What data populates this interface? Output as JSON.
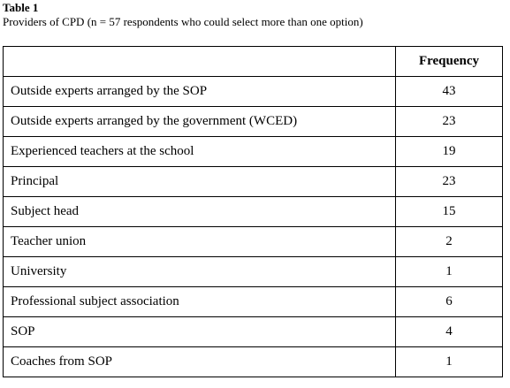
{
  "title": "Table 1",
  "caption": "Providers of CPD (n = 57 respondents who could select more than one option)",
  "table": {
    "header": "Frequency",
    "rows": [
      [
        "Outside experts arranged by the SOP",
        43
      ],
      [
        "Outside experts arranged by the government (WCED)",
        23
      ],
      [
        "Experienced teachers at the school",
        19
      ],
      [
        "Principal",
        23
      ],
      [
        "Subject head",
        15
      ],
      [
        "Teacher union",
        2
      ],
      [
        "University",
        1
      ],
      [
        "Professional subject association",
        6
      ],
      [
        "SOP",
        4
      ],
      [
        "Coaches from SOP",
        1
      ]
    ]
  }
}
